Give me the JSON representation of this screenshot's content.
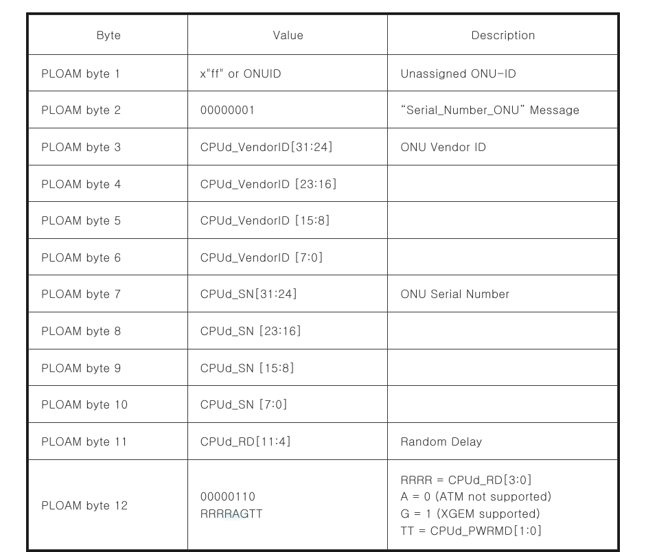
{
  "table": {
    "border_color": "#1a1a1a",
    "cell_border_color": "#3a3a3a",
    "background_color": "#ffffff",
    "text_color": "#2b2b2b",
    "font_size_pt": 13,
    "column_widths_pct": [
      27,
      34,
      39
    ],
    "headers": {
      "byte": "Byte",
      "value": "Value",
      "description": "Description"
    },
    "rows": [
      {
        "byte": "PLOAM byte 1",
        "value": "x\"ff\" or ONUID",
        "description": "Unassigned ONU-ID"
      },
      {
        "byte": "PLOAM byte 2",
        "value": "00000001",
        "description": "“Serial_Number_ONU” Message"
      },
      {
        "byte": "PLOAM byte 3",
        "value": "CPUd_VendorID[31:24]",
        "description": "ONU Vendor ID"
      },
      {
        "byte": "PLOAM byte 4",
        "value": "CPUd_VendorID [23:16]",
        "description": ""
      },
      {
        "byte": "PLOAM byte 5",
        "value": "CPUd_VendorID [15:8]",
        "description": ""
      },
      {
        "byte": "PLOAM byte 6",
        "value": "CPUd_VendorID [7:0]",
        "description": ""
      },
      {
        "byte": "PLOAM byte 7",
        "value": "CPUd_SN[31:24]",
        "description": "ONU Serial Number"
      },
      {
        "byte": "PLOAM byte 8",
        "value": "CPUd_SN [23:16]",
        "description": ""
      },
      {
        "byte": "PLOAM byte 9",
        "value": "CPUd_SN [15:8]",
        "description": ""
      },
      {
        "byte": "PLOAM byte 10",
        "value": "CPUd_SN [7:0]",
        "description": ""
      },
      {
        "byte": "PLOAM byte 11",
        "value": "CPUd_RD[11:4]",
        "description": "Random Delay"
      }
    ],
    "row12": {
      "byte": "PLOAM byte 12",
      "value_line1": "00000110",
      "value_line2": "RRRRAGTT",
      "desc_line1": "RRRR = CPUd_RD[3:0]",
      "desc_line2": "A = 0 (ATM not supported)",
      "desc_line3": "G = 1 (XGEM supported)",
      "desc_line4": "TT = CPUd_PWRMD[1:0]"
    }
  }
}
